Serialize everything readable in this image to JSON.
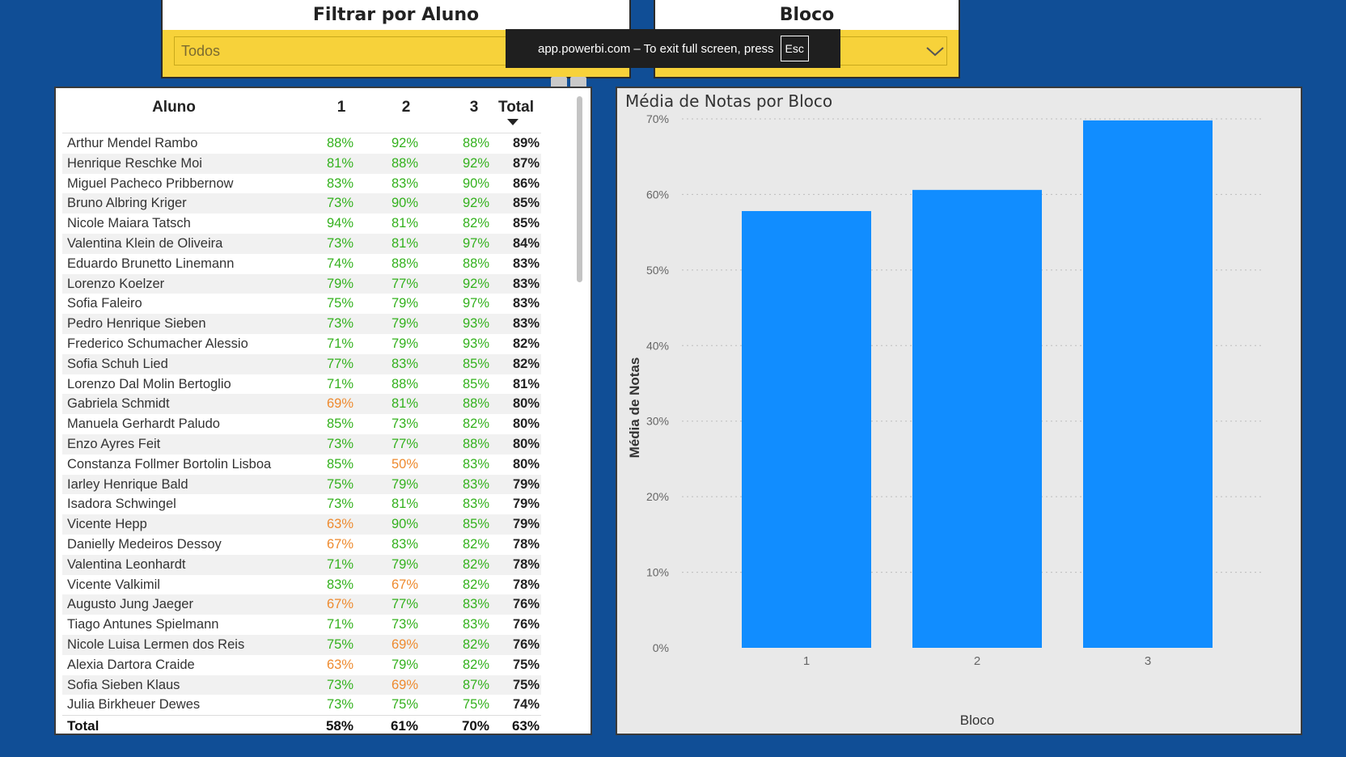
{
  "slicer_aluno": {
    "title": "Filtrar por Aluno",
    "value": "Todos"
  },
  "slicer_bloco": {
    "title": "Bloco"
  },
  "fullscreen_toast": {
    "message": "app.powerbi.com – To exit full screen, press",
    "key": "Esc"
  },
  "table": {
    "headers": [
      "Aluno",
      "1",
      "2",
      "3",
      "Total"
    ],
    "rows": [
      {
        "aluno": "Arthur Mendel Rambo",
        "b1": "88%",
        "b2": "92%",
        "b3": "88%",
        "total": "89%"
      },
      {
        "aluno": "Henrique Reschke Moi",
        "b1": "81%",
        "b2": "88%",
        "b3": "92%",
        "total": "87%"
      },
      {
        "aluno": "Miguel Pacheco Pribbernow",
        "b1": "83%",
        "b2": "83%",
        "b3": "90%",
        "total": "86%"
      },
      {
        "aluno": "Bruno Albring Kriger",
        "b1": "73%",
        "b2": "90%",
        "b3": "92%",
        "total": "85%"
      },
      {
        "aluno": "Nicole Maiara Tatsch",
        "b1": "94%",
        "b2": "81%",
        "b3": "82%",
        "total": "85%"
      },
      {
        "aluno": "Valentina Klein de Oliveira",
        "b1": "73%",
        "b2": "81%",
        "b3": "97%",
        "total": "84%"
      },
      {
        "aluno": "Eduardo Brunetto Linemann",
        "b1": "74%",
        "b2": "88%",
        "b3": "88%",
        "total": "83%"
      },
      {
        "aluno": "Lorenzo Koelzer",
        "b1": "79%",
        "b2": "77%",
        "b3": "92%",
        "total": "83%"
      },
      {
        "aluno": "Sofia Faleiro",
        "b1": "75%",
        "b2": "79%",
        "b3": "97%",
        "total": "83%"
      },
      {
        "aluno": "Pedro Henrique Sieben",
        "b1": "73%",
        "b2": "79%",
        "b3": "93%",
        "total": "83%"
      },
      {
        "aluno": "Frederico Schumacher Alessio",
        "b1": "71%",
        "b2": "79%",
        "b3": "93%",
        "total": "82%"
      },
      {
        "aluno": "Sofia Schuh Lied",
        "b1": "77%",
        "b2": "83%",
        "b3": "85%",
        "total": "82%"
      },
      {
        "aluno": "Lorenzo Dal Molin Bertoglio",
        "b1": "71%",
        "b2": "88%",
        "b3": "85%",
        "total": "81%"
      },
      {
        "aluno": "Gabriela Schmidt",
        "b1": "69%",
        "b2": "81%",
        "b3": "88%",
        "total": "80%"
      },
      {
        "aluno": "Manuela Gerhardt Paludo",
        "b1": "85%",
        "b2": "73%",
        "b3": "82%",
        "total": "80%"
      },
      {
        "aluno": "Enzo Ayres Feit",
        "b1": "73%",
        "b2": "77%",
        "b3": "88%",
        "total": "80%"
      },
      {
        "aluno": "Constanza Follmer Bortolin Lisboa",
        "b1": "85%",
        "b2": "50%",
        "b3": "83%",
        "total": "80%"
      },
      {
        "aluno": "Iarley Henrique Bald",
        "b1": "75%",
        "b2": "79%",
        "b3": "83%",
        "total": "79%"
      },
      {
        "aluno": "Isadora Schwingel",
        "b1": "73%",
        "b2": "81%",
        "b3": "83%",
        "total": "79%"
      },
      {
        "aluno": "Vicente Hepp",
        "b1": "63%",
        "b2": "90%",
        "b3": "85%",
        "total": "79%"
      },
      {
        "aluno": "Danielly Medeiros Dessoy",
        "b1": "67%",
        "b2": "83%",
        "b3": "82%",
        "total": "78%"
      },
      {
        "aluno": "Valentina Leonhardt",
        "b1": "71%",
        "b2": "79%",
        "b3": "82%",
        "total": "78%"
      },
      {
        "aluno": "Vicente Valkimil",
        "b1": "83%",
        "b2": "67%",
        "b3": "82%",
        "total": "78%"
      },
      {
        "aluno": "Augusto Jung Jaeger",
        "b1": "67%",
        "b2": "77%",
        "b3": "83%",
        "total": "76%"
      },
      {
        "aluno": "Tiago Antunes Spielmann",
        "b1": "71%",
        "b2": "73%",
        "b3": "83%",
        "total": "76%"
      },
      {
        "aluno": "Nicole Luisa Lermen dos Reis",
        "b1": "75%",
        "b2": "69%",
        "b3": "82%",
        "total": "76%"
      },
      {
        "aluno": "Alexia Dartora Craide",
        "b1": "63%",
        "b2": "79%",
        "b3": "82%",
        "total": "75%"
      },
      {
        "aluno": "Sofia Sieben Klaus",
        "b1": "73%",
        "b2": "69%",
        "b3": "87%",
        "total": "75%"
      },
      {
        "aluno": "Julia Birkheuer Dewes",
        "b1": "73%",
        "b2": "75%",
        "b3": "75%",
        "total": "74%"
      }
    ],
    "total_row": {
      "label": "Total",
      "b1": "58%",
      "b2": "61%",
      "b3": "70%",
      "total": "63%"
    }
  },
  "colors": {
    "background": "#104e96",
    "slicer_yellow": "#f7d23a",
    "bar": "#118dff",
    "good": "#33b11d",
    "warn": "#ee8a2e"
  },
  "chart_data": {
    "type": "bar",
    "title": "Média de Notas por Bloco",
    "xlabel": "Bloco",
    "ylabel": "Média de Notas",
    "categories": [
      "1",
      "2",
      "3"
    ],
    "values": [
      57.8,
      60.6,
      69.8
    ],
    "ylim": [
      0,
      70
    ],
    "yticks": [
      "0%",
      "10%",
      "20%",
      "30%",
      "40%",
      "50%",
      "60%",
      "70%"
    ],
    "grid": true
  }
}
